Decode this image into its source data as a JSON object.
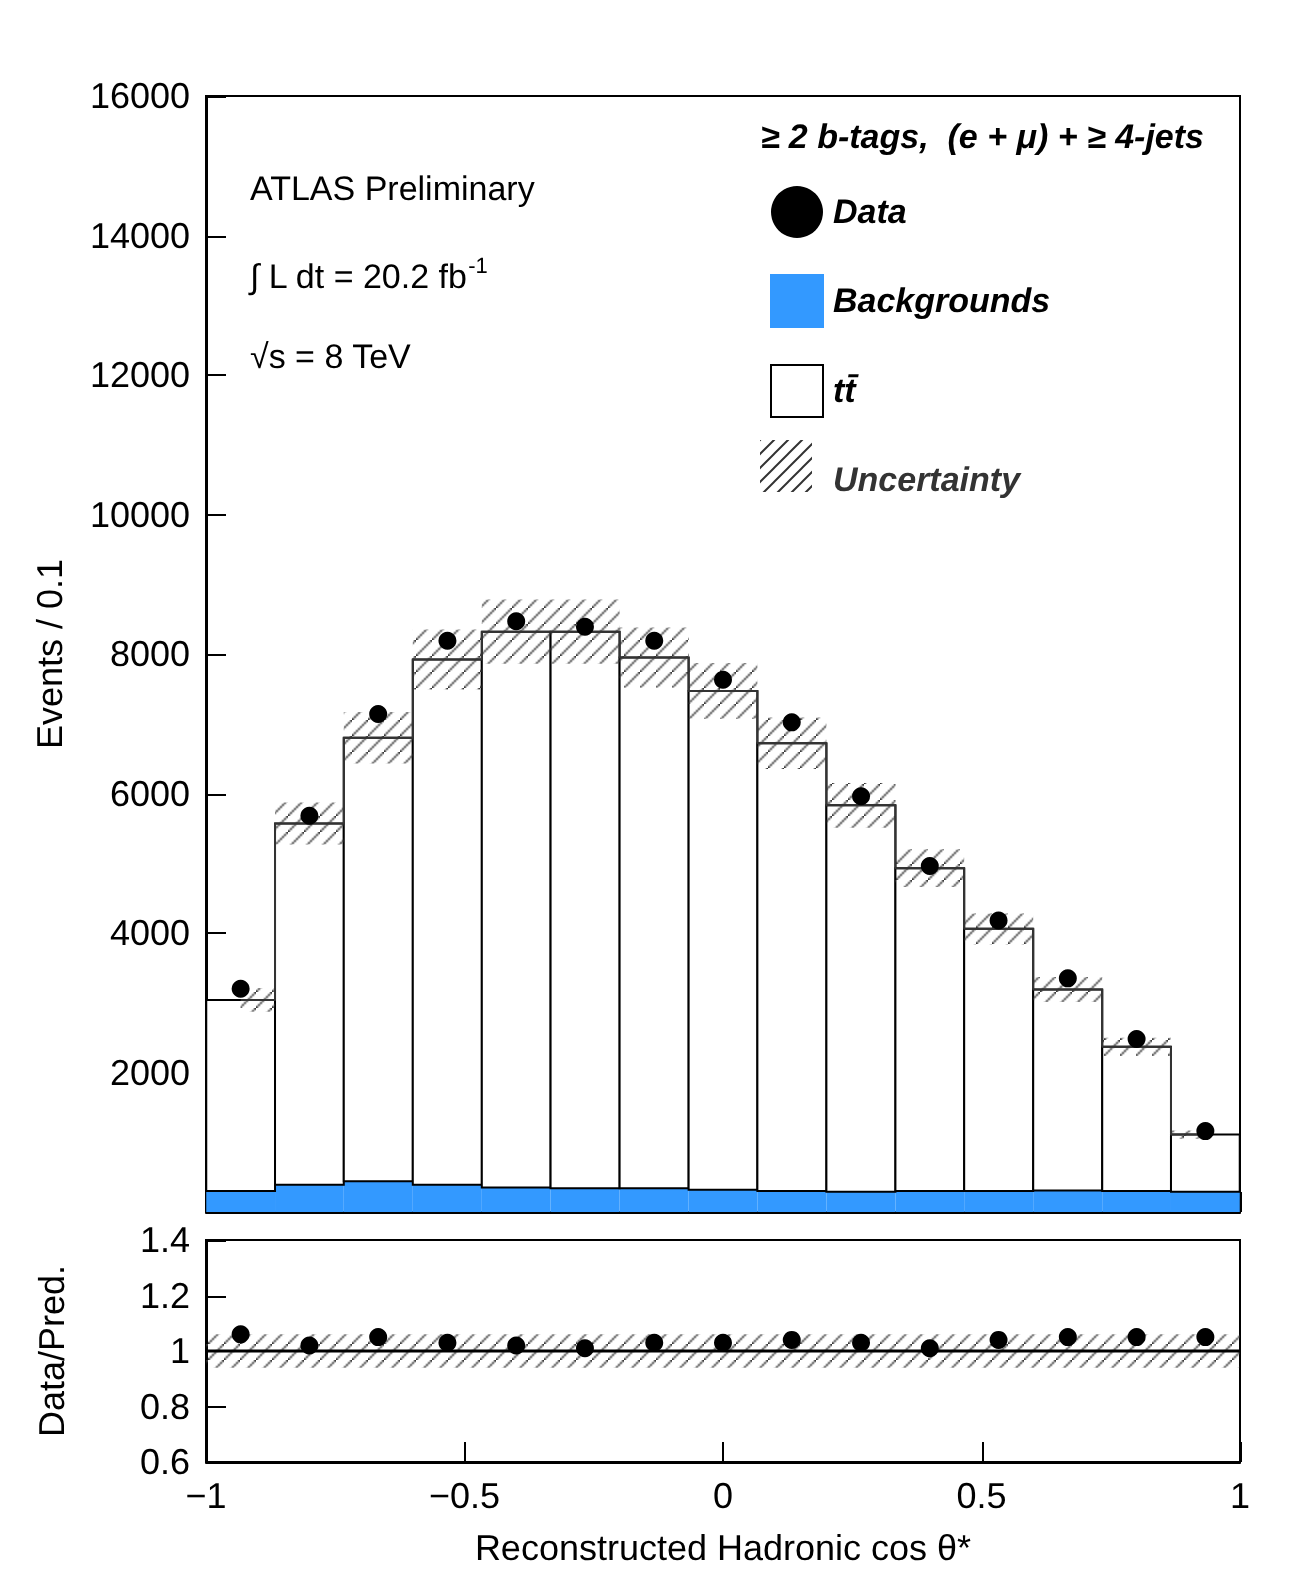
{
  "chart_data": [
    {
      "type": "bar",
      "title": "≥ 2 b-tags,  (e + μ) + ≥ 4-jets",
      "ylabel": "Events / 0.1",
      "annotations": [
        "ATLAS Preliminary",
        "∫ L dt = 20.2 fb$^{-1}$",
        "√s = 8 TeV"
      ],
      "x": [
        -0.933,
        -0.8,
        -0.667,
        -0.533,
        -0.4,
        -0.267,
        -0.133,
        0,
        0.133,
        0.267,
        0.4,
        0.533,
        0.667,
        0.8,
        0.933
      ],
      "stacked": true,
      "series": [
        {
          "name": "Data",
          "type": "scatter",
          "marker": "circle",
          "color": "#000000",
          "values": [
            3200,
            5680,
            7140,
            8190,
            8470,
            8390,
            8190,
            7630,
            7020,
            5960,
            4960,
            4180,
            3350,
            2480,
            1160
          ]
        },
        {
          "name": "Backgrounds",
          "color": "#3399ff",
          "values": [
            300,
            390,
            440,
            390,
            350,
            340,
            340,
            320,
            300,
            290,
            300,
            300,
            310,
            300,
            290
          ]
        },
        {
          "name": "tt̄",
          "color": "#ffffff",
          "values": [
            2740,
            5180,
            6360,
            7530,
            7970,
            7980,
            7610,
            7150,
            6420,
            5540,
            4630,
            3760,
            2880,
            2070,
            820
          ]
        },
        {
          "name": "Uncertainty",
          "type": "step",
          "color": "#333333",
          "values": [
            3040,
            5570,
            6800,
            7920,
            8320,
            8320,
            7950,
            7470,
            6720,
            5830,
            4930,
            4060,
            3190,
            2370,
            1110
          ],
          "lower": [
            2870,
            5270,
            6430,
            7490,
            7860,
            7860,
            7520,
            7070,
            6350,
            5510,
            4660,
            3840,
            3010,
            2240,
            1050
          ],
          "upper": [
            3210,
            5870,
            7170,
            8350,
            8780,
            8780,
            8380,
            7870,
            7090,
            6150,
            5200,
            4280,
            3370,
            2500,
            1170
          ]
        }
      ],
      "xlim": [
        -1,
        1
      ],
      "xticks": [
        -1,
        -0.5,
        0,
        0.5,
        1
      ],
      "ylim": [
        0,
        16000
      ],
      "yticks": [
        {
          "value": 0,
          "label": null
        },
        2000,
        4000,
        6000,
        8000,
        10000,
        12000,
        14000,
        16000
      ],
      "tick_labels": "y",
      "legend": "top right",
      "grid": false
    },
    {
      "type": "scatter",
      "xlabel": "Reconstructed Hadronic cos θ*",
      "ylabel": "Data/Pred.",
      "x": [
        -0.933,
        -0.8,
        -0.667,
        -0.533,
        -0.4,
        -0.267,
        -0.133,
        0,
        0.133,
        0.267,
        0.4,
        0.533,
        0.667,
        0.8,
        0.933
      ],
      "series": [
        {
          "color": "#000000",
          "values": [
            1.06,
            1.02,
            1.05,
            1.03,
            1.02,
            1.01,
            1.03,
            1.03,
            1.04,
            1.03,
            1.01,
            1.04,
            1.05,
            1.05,
            1.05
          ]
        }
      ],
      "xlim": [
        -1,
        1
      ],
      "xticks": [
        -1,
        -0.5,
        0,
        0.5,
        1
      ],
      "ylim": [
        0.6,
        1.4
      ],
      "yticks": [
        0.6,
        0.8,
        1,
        1.2,
        1.4
      ],
      "marker": "circle",
      "grid": false,
      "legend": false,
      "bands": [
        {
          "axis": "y",
          "from": 0.94,
          "to": 1.06,
          "color": "#333333"
        }
      ],
      "ref_lines": [
        {
          "axis": "y",
          "value": 1,
          "color": "#000000"
        }
      ]
    }
  ]
}
